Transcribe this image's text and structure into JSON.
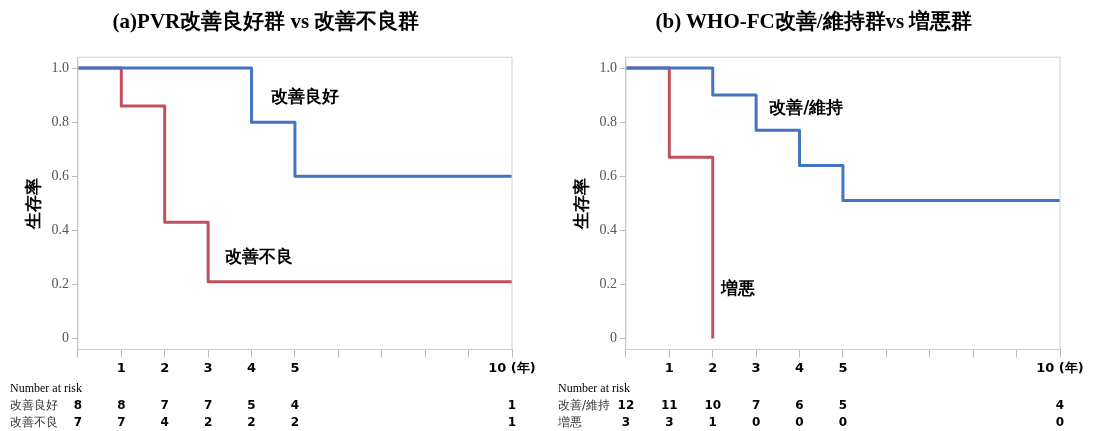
{
  "chart_data": [
    {
      "type": "step",
      "title": "(a)PVR改善良好群 vs 改善不良群",
      "ylabel": "生存率",
      "xlim": [
        0,
        10
      ],
      "ylim": [
        -0.04,
        1.04
      ],
      "xticks": [
        {
          "value": 0,
          "label": null
        },
        1,
        2,
        3,
        4,
        5,
        {
          "value": 6,
          "label": null
        },
        {
          "value": 7,
          "label": null
        },
        {
          "value": 8,
          "label": null
        },
        {
          "value": 9,
          "label": null
        },
        {
          "value": 10,
          "label": "10 (年)"
        }
      ],
      "yticks": [
        0,
        0.2,
        0.4,
        0.6,
        0.8,
        {
          "value": 1,
          "label": "1.0"
        }
      ],
      "series": [
        {
          "name": "改善良好",
          "color": "#4472c4",
          "x": [
            0,
            4,
            5,
            10
          ],
          "values": [
            1,
            0.8,
            0.6,
            0.6
          ]
        },
        {
          "name": "改善不良",
          "color": "#c0505e",
          "x": [
            0,
            1,
            2,
            3,
            10
          ],
          "values": [
            1,
            0.86,
            0.43,
            0.21,
            0.21
          ]
        }
      ],
      "annotations": [
        "Number at risk",
        "改善良好 8 8 7 7 5 4 1",
        "改善不良 7 7 4 2 2 2 1"
      ],
      "grid": false,
      "legend": false
    },
    {
      "type": "step",
      "title": "(b) WHO-FC改善/維持群vs 増悪群",
      "ylabel": "生存率",
      "xlim": [
        0,
        10
      ],
      "ylim": [
        -0.04,
        1.04
      ],
      "xticks": [
        {
          "value": 0,
          "label": null
        },
        1,
        2,
        3,
        4,
        5,
        {
          "value": 6,
          "label": null
        },
        {
          "value": 7,
          "label": null
        },
        {
          "value": 8,
          "label": null
        },
        {
          "value": 9,
          "label": null
        },
        {
          "value": 10,
          "label": "10 (年)"
        }
      ],
      "yticks": [
        0,
        0.2,
        0.4,
        0.6,
        0.8,
        {
          "value": 1,
          "label": "1.0"
        }
      ],
      "series": [
        {
          "name": "改善/維持",
          "color": "#4472c4",
          "x": [
            0,
            2,
            3,
            4,
            5,
            10
          ],
          "values": [
            1,
            0.9,
            0.77,
            0.64,
            0.51,
            0.51
          ]
        },
        {
          "name": "増悪",
          "color": "#c0505e",
          "x": [
            0,
            1,
            2
          ],
          "values": [
            1,
            0.67,
            0
          ]
        }
      ],
      "annotations": [
        "Number at risk",
        "改善/維持 12 11 10 7 6 5 4",
        "増悪 3 3 1 0 0 0 0"
      ],
      "grid": false,
      "legend": false
    }
  ]
}
